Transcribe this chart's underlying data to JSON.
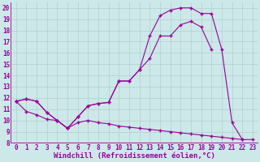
{
  "bg_color": "#cce8e8",
  "line_color": "#990099",
  "xlabel": "Windchill (Refroidissement éolien,°C)",
  "xlim": [
    -0.5,
    23.5
  ],
  "ylim": [
    8,
    20.5
  ],
  "yticks": [
    8,
    9,
    10,
    11,
    12,
    13,
    14,
    15,
    16,
    17,
    18,
    19,
    20
  ],
  "xticks": [
    0,
    1,
    2,
    3,
    4,
    5,
    6,
    7,
    8,
    9,
    10,
    11,
    12,
    13,
    14,
    15,
    16,
    17,
    18,
    19,
    20,
    21,
    22,
    23
  ],
  "line1": {
    "x": [
      0,
      1,
      2,
      3,
      4,
      5,
      6,
      7,
      8,
      9,
      10,
      11,
      12,
      13,
      14,
      15,
      16,
      17,
      18,
      19,
      20,
      21,
      22,
      23
    ],
    "y": [
      11.7,
      11.9,
      11.7,
      10.7,
      10.0,
      9.3,
      10.3,
      11.3,
      11.5,
      11.6,
      13.5,
      13.5,
      14.5,
      17.5,
      19.3,
      19.8,
      20.0,
      20.0,
      19.5,
      19.5,
      16.3,
      9.8,
      8.3,
      null
    ]
  },
  "line2": {
    "x": [
      0,
      1,
      2,
      3,
      4,
      5,
      6,
      7,
      8,
      9,
      10,
      11,
      12,
      13,
      14,
      15,
      16,
      17,
      18,
      19
    ],
    "y": [
      11.7,
      11.9,
      11.7,
      10.7,
      10.0,
      9.3,
      10.3,
      11.3,
      11.5,
      11.6,
      13.5,
      13.5,
      14.5,
      15.5,
      17.5,
      17.5,
      18.5,
      18.8,
      18.3,
      16.3
    ]
  },
  "line3": {
    "x": [
      0,
      1,
      2,
      3,
      4,
      5,
      6,
      7,
      8,
      9,
      10,
      11,
      12,
      13,
      14,
      15,
      16,
      17,
      18,
      19,
      20,
      21,
      22,
      23
    ],
    "y": [
      11.7,
      10.8,
      10.5,
      10.1,
      10.0,
      9.3,
      9.8,
      10.0,
      9.8,
      9.7,
      9.5,
      9.4,
      9.3,
      9.2,
      9.1,
      9.0,
      8.9,
      8.8,
      8.7,
      8.6,
      8.5,
      8.4,
      8.3,
      8.3
    ]
  },
  "grid_color": "#b0d0d0",
  "xlabel_fontsize": 6.5,
  "tick_fontsize": 5.5
}
